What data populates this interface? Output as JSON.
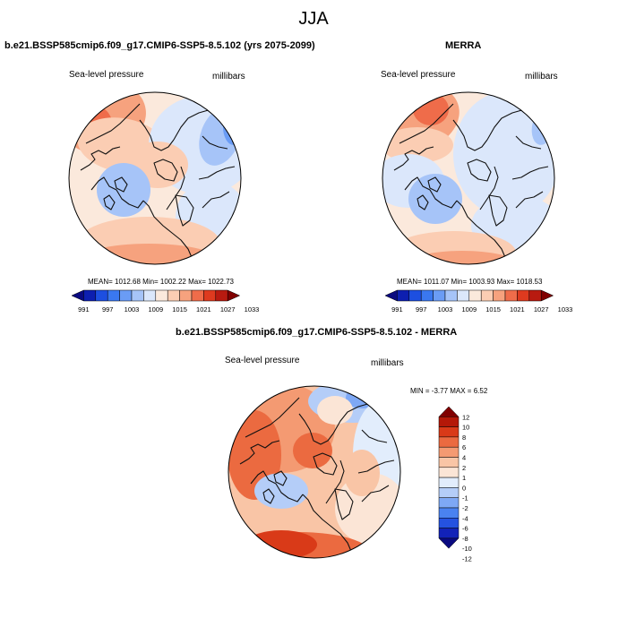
{
  "main_title": "JJA",
  "palette": {
    "abs": [
      "#0a0a80",
      "#0d1fb0",
      "#1d4fe0",
      "#3a78f0",
      "#6a9cf5",
      "#a6c4f8",
      "#dbe7fb",
      "#fbe9dc",
      "#fbcdb3",
      "#f6a27e",
      "#ef6c4a",
      "#de3a1f",
      "#b81a10",
      "#800000"
    ],
    "diff": [
      "#0a0a80",
      "#1222b8",
      "#2552e0",
      "#4a82f0",
      "#7ea8f5",
      "#b4cdf8",
      "#e2edfc",
      "#fbe5d6",
      "#f9c5a6",
      "#f49a72",
      "#eb6a40",
      "#d93a18",
      "#b41808",
      "#800000"
    ]
  },
  "panels": [
    {
      "title": "b.e21.BSSP585cmip6.f09_g17.CMIP6-SSP5-8.5.102 (yrs 2075-2099)",
      "left_label": "Sea-level pressure",
      "right_label": "millibars",
      "stats": "MEAN= 1012.68  Min= 1002.22  Max= 1022.73",
      "ticks": [
        "991",
        "997",
        "1003",
        "1009",
        "1015",
        "1021",
        "1027",
        "1033"
      ]
    },
    {
      "title": "MERRA",
      "left_label": "Sea-level pressure",
      "right_label": "millibars",
      "stats": "MEAN= 1011.07  Min= 1003.93  Max= 1018.53",
      "ticks": [
        "991",
        "997",
        "1003",
        "1009",
        "1015",
        "1021",
        "1027",
        "1033"
      ]
    },
    {
      "title": "b.e21.BSSP585cmip6.f09_g17.CMIP6-SSP5-8.5.102 - MERRA",
      "left_label": "Sea-level pressure",
      "right_label": "millibars",
      "minmax": "MIN =  -3.77 MAX =   6.52",
      "ticks": [
        "12",
        "10",
        "8",
        "6",
        "4",
        "2",
        "1",
        "0",
        "-1",
        "-2",
        "-4",
        "-6",
        "-8",
        "-10",
        "-12"
      ]
    }
  ]
}
